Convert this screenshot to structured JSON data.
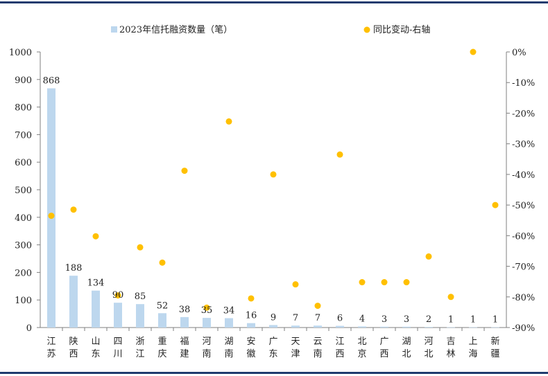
{
  "chart_data": {
    "type": "bar+scatter",
    "legend": {
      "placement": "top",
      "bar_series_name": "2023年信托融资数量（笔）",
      "dot_series_name": "同比变动-右轴"
    },
    "categories": [
      "江苏",
      "陕西",
      "山东",
      "四川",
      "浙江",
      "重庆",
      "福建",
      "河南",
      "湖南",
      "安徽",
      "广东",
      "天津",
      "云南",
      "江西",
      "北京",
      "广西",
      "湖北",
      "河北",
      "吉林",
      "上海",
      "新疆"
    ],
    "bar_values": [
      868,
      188,
      134,
      90,
      85,
      52,
      38,
      35,
      34,
      16,
      9,
      7,
      7,
      6,
      4,
      3,
      3,
      2,
      1,
      1,
      1
    ],
    "dot_values_pct": [
      -53.5,
      -51.5,
      -60.2,
      -79.5,
      -63.8,
      -68.8,
      -38.8,
      -83.5,
      -22.7,
      -80.5,
      -40.0,
      -75.9,
      -82.9,
      -33.5,
      -75.2,
      -75.2,
      -75.2,
      -66.8,
      -80.0,
      0,
      -50.0
    ],
    "left_axis": {
      "ylim": [
        0,
        1000
      ],
      "ticks": [
        "0",
        "100",
        "200",
        "300",
        "400",
        "500",
        "600",
        "700",
        "800",
        "900",
        "1000"
      ]
    },
    "right_axis": {
      "ylim": [
        -90,
        0
      ],
      "ticks": [
        "0%",
        "-10%",
        "-20%",
        "-30%",
        "-40%",
        "-50%",
        "-60%",
        "-70%",
        "-80%",
        "-90%"
      ]
    },
    "colors": {
      "bar": "#bdd7ee",
      "dot": "#ffc000",
      "axis": "#7f7f7f",
      "rule": "#1f3b6e"
    },
    "grid": false
  }
}
